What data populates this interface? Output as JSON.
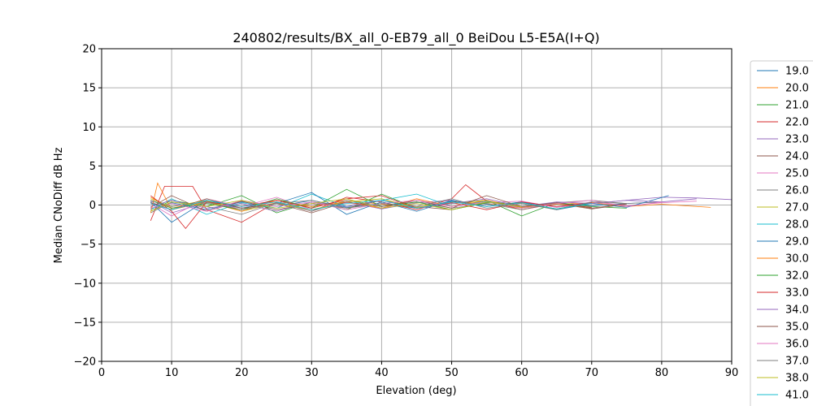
{
  "chart_data": {
    "type": "line",
    "title": "240802/results/BX_all_0-EB79_all_0 BeiDou L5-E5A(I+Q)",
    "xlabel": "Elevation (deg)",
    "ylabel": "Median CNoDiff dB Hz",
    "xlim": [
      0,
      90
    ],
    "ylim": [
      -20,
      20
    ],
    "xticks": [
      0,
      10,
      20,
      30,
      40,
      50,
      60,
      70,
      80,
      90
    ],
    "yticks": [
      -20,
      -15,
      -10,
      -5,
      0,
      5,
      10,
      15,
      20
    ],
    "grid": true,
    "legend_position": "right",
    "series": [
      {
        "name": "19.0",
        "color": "#1f77b4",
        "x": [
          7,
          10,
          15,
          20,
          25,
          30,
          35,
          40,
          45,
          50,
          55,
          60,
          65,
          70,
          75,
          80
        ],
        "y": [
          -0.5,
          0.3,
          -0.6,
          0.4,
          -0.2,
          0.6,
          -0.3,
          0.2,
          -0.4,
          0.5,
          0.1,
          -0.2,
          0.3,
          -0.1,
          0.2,
          0.4
        ]
      },
      {
        "name": "20.0",
        "color": "#ff7f0e",
        "x": [
          7,
          10,
          15,
          20,
          25,
          30,
          35,
          40,
          45,
          50,
          55,
          60,
          65,
          70,
          75,
          80,
          87
        ],
        "y": [
          1.0,
          -0.4,
          0.5,
          -0.6,
          0.3,
          -0.2,
          0.6,
          0.1,
          -0.3,
          0.4,
          0.2,
          -0.4,
          0.1,
          0.3,
          -0.2,
          0.1,
          -0.3
        ]
      },
      {
        "name": "21.0",
        "color": "#2ca02c",
        "x": [
          7,
          10,
          15,
          20,
          25,
          30,
          35,
          40,
          45,
          50,
          55,
          60,
          65,
          70,
          75
        ],
        "y": [
          -0.8,
          0.6,
          -0.2,
          1.2,
          -1.0,
          0.4,
          -0.6,
          1.4,
          -0.4,
          0.2,
          0.6,
          -1.4,
          0.3,
          -0.2,
          -0.4
        ]
      },
      {
        "name": "22.0",
        "color": "#d62728",
        "x": [
          7,
          9,
          13,
          15,
          20,
          25,
          30,
          35,
          40,
          45,
          50,
          52,
          55,
          60,
          65,
          70
        ],
        "y": [
          -2.0,
          2.4,
          2.4,
          -0.6,
          -2.2,
          0.4,
          -0.8,
          1.0,
          0.4,
          -0.6,
          0.8,
          2.6,
          0.5,
          -0.6,
          0.2,
          -0.3
        ]
      },
      {
        "name": "23.0",
        "color": "#9467bd",
        "x": [
          7,
          10,
          15,
          20,
          25,
          30,
          35,
          40,
          45,
          50,
          55,
          60,
          65,
          70,
          75,
          80,
          85,
          90
        ],
        "y": [
          0.5,
          -1.0,
          0.3,
          -0.4,
          0.6,
          -0.2,
          0.4,
          -0.5,
          0.3,
          0.6,
          -0.2,
          0.4,
          -0.3,
          0.2,
          0.6,
          1.0,
          0.9,
          0.7
        ]
      },
      {
        "name": "24.0",
        "color": "#8c564b",
        "x": [
          7,
          10,
          15,
          20,
          25,
          30,
          35,
          40,
          45,
          50,
          55,
          60,
          65,
          70,
          75
        ],
        "y": [
          -0.3,
          1.2,
          -0.8,
          0.5,
          -0.6,
          0.2,
          -0.4,
          0.6,
          -0.2,
          -0.6,
          0.4,
          -0.3,
          0.2,
          -0.5,
          0.1
        ]
      },
      {
        "name": "25.0",
        "color": "#e377c2",
        "x": [
          7,
          10,
          15,
          20,
          25,
          30,
          35,
          40,
          45,
          50,
          55,
          60,
          65,
          70,
          75,
          80,
          85
        ],
        "y": [
          0.2,
          -1.4,
          0.8,
          -0.2,
          1.0,
          -0.6,
          0.3,
          -0.4,
          0.6,
          -0.2,
          0.3,
          0.5,
          -0.3,
          0.4,
          -0.1,
          0.3,
          0.5
        ]
      },
      {
        "name": "26.0",
        "color": "#7f7f7f",
        "x": [
          7,
          10,
          15,
          20,
          25,
          30,
          35,
          40,
          45,
          50,
          55,
          60,
          65,
          70,
          75,
          80
        ],
        "y": [
          -1.0,
          0.4,
          -0.2,
          -1.2,
          0.3,
          -0.8,
          0.6,
          -0.2,
          0.4,
          -0.4,
          0.2,
          -0.6,
          0.3,
          0.6,
          0.2,
          0.4
        ]
      },
      {
        "name": "27.0",
        "color": "#bcbd22",
        "x": [
          7,
          10,
          15,
          20,
          25,
          30,
          35,
          40,
          45,
          50,
          55,
          60,
          65
        ],
        "y": [
          0.8,
          -0.2,
          0.6,
          -0.8,
          0.2,
          -0.6,
          0.4,
          0.8,
          -0.3,
          0.2,
          0.6,
          -0.4,
          0.2
        ]
      },
      {
        "name": "28.0",
        "color": "#17becf",
        "x": [
          7,
          10,
          15,
          20,
          25,
          30,
          35,
          40,
          45,
          50,
          55,
          60,
          65,
          70
        ],
        "y": [
          -0.6,
          0.8,
          -1.2,
          0.3,
          -0.4,
          1.4,
          -0.2,
          0.6,
          1.4,
          -0.2,
          0.5,
          -0.3,
          0.2,
          -0.4
        ]
      },
      {
        "name": "29.0",
        "color": "#1f77b4",
        "x": [
          7,
          10,
          15,
          20,
          25,
          30,
          35,
          40,
          45,
          50,
          55,
          60,
          65,
          70,
          75,
          81
        ],
        "y": [
          0.4,
          -2.2,
          0.6,
          -0.4,
          0.2,
          1.6,
          -1.2,
          0.4,
          -0.8,
          0.6,
          -0.2,
          0.4,
          -0.6,
          0.2,
          -0.3,
          1.2
        ]
      },
      {
        "name": "30.0",
        "color": "#ff7f0e",
        "x": [
          7,
          8,
          10,
          15,
          20,
          25,
          30,
          35,
          40,
          45,
          50,
          55,
          60,
          65,
          70
        ],
        "y": [
          -1.0,
          2.8,
          -0.6,
          0.4,
          -0.8,
          0.6,
          -0.2,
          0.4,
          -0.4,
          0.8,
          -0.2,
          0.6,
          -0.3,
          0.2,
          -0.4
        ]
      },
      {
        "name": "32.0",
        "color": "#2ca02c",
        "x": [
          7,
          10,
          15,
          20,
          25,
          30,
          35,
          40,
          45,
          50,
          55,
          60,
          65,
          70
        ],
        "y": [
          0.6,
          -0.4,
          0.2,
          -0.6,
          0.8,
          -0.4,
          2.0,
          -0.2,
          0.4,
          -0.6,
          0.3,
          0.2,
          -0.5,
          0.3
        ]
      },
      {
        "name": "33.0",
        "color": "#d62728",
        "x": [
          7,
          10,
          12,
          15,
          20,
          25,
          30,
          35,
          40,
          45,
          50,
          55,
          60,
          65,
          70
        ],
        "y": [
          1.2,
          -0.8,
          -3.0,
          0.4,
          -0.2,
          0.6,
          -0.4,
          0.8,
          1.2,
          -0.4,
          0.3,
          -0.6,
          0.4,
          -0.2,
          0.3
        ]
      },
      {
        "name": "34.0",
        "color": "#9467bd",
        "x": [
          7,
          10,
          15,
          20,
          25,
          30,
          35,
          40,
          45,
          50,
          55,
          60,
          65,
          70,
          75,
          80,
          85
        ],
        "y": [
          -0.2,
          0.6,
          -0.4,
          0.2,
          -0.8,
          0.4,
          -0.2,
          0.6,
          -0.4,
          0.2,
          0.8,
          -0.2,
          0.4,
          0.2,
          0.6,
          0.4,
          0.8
        ]
      },
      {
        "name": "35.0",
        "color": "#8c564b",
        "x": [
          7,
          10,
          15,
          20,
          25,
          30,
          35,
          40,
          45,
          50,
          55,
          60,
          65,
          70,
          75
        ],
        "y": [
          0.3,
          -0.6,
          0.8,
          -0.4,
          0.2,
          -1.0,
          0.4,
          -0.2,
          0.6,
          -0.4,
          1.2,
          -0.2,
          0.3,
          -0.4,
          0.2
        ]
      },
      {
        "name": "36.0",
        "color": "#e377c2",
        "x": [
          7,
          10,
          15,
          20,
          25,
          30,
          35,
          40,
          45,
          50,
          55,
          60,
          65,
          70,
          75,
          80
        ],
        "y": [
          -0.4,
          0.2,
          -0.8,
          0.6,
          -0.2,
          0.4,
          -0.6,
          0.2,
          0.6,
          -0.2,
          0.4,
          -0.4,
          0.2,
          0.6,
          -0.2,
          0.4
        ]
      },
      {
        "name": "37.0",
        "color": "#7f7f7f",
        "x": [
          7,
          10,
          15,
          20,
          25,
          30,
          35,
          40,
          45,
          50,
          55,
          60,
          65,
          70,
          75
        ],
        "y": [
          0.6,
          -0.2,
          0.4,
          -0.6,
          0.2,
          0.6,
          -0.4,
          0.2,
          -0.2,
          0.8,
          -0.4,
          0.2,
          -0.6,
          0.4,
          0.2
        ]
      },
      {
        "name": "38.0",
        "color": "#bcbd22",
        "x": [
          7,
          10,
          15,
          20,
          25,
          30,
          35,
          40,
          45,
          50,
          55,
          60
        ],
        "y": [
          -0.8,
          0.4,
          -0.2,
          0.6,
          -0.4,
          0.2,
          0.8,
          -0.4,
          0.2,
          -0.6,
          0.4,
          -0.2
        ]
      },
      {
        "name": "41.0",
        "color": "#17becf",
        "x": [
          7,
          10,
          15,
          20,
          25,
          30,
          35,
          40,
          45,
          50,
          55,
          60,
          65,
          70
        ],
        "y": [
          0.2,
          -0.6,
          0.6,
          -0.2,
          0.4,
          -0.6,
          0.2,
          0.6,
          -0.4,
          0.4,
          -0.2,
          0.3,
          -0.5,
          0.2
        ]
      }
    ]
  }
}
